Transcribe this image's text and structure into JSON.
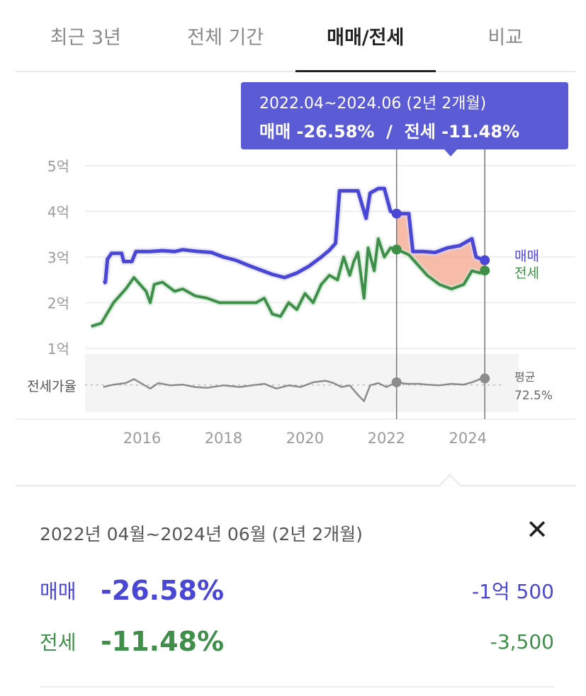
{
  "tabs": [
    {
      "label": "최근 3년",
      "active": false
    },
    {
      "label": "전체 기간",
      "active": false
    },
    {
      "label": "매매/전세",
      "active": true
    },
    {
      "label": "비교",
      "active": false
    }
  ],
  "tooltip": {
    "line1": "2022.04~2024.06 (2년 2개월)",
    "line2": "매매 -26.58%  /  전세 -11.48%"
  },
  "colors": {
    "sale": "#4a46d6",
    "jeonse": "#3f8f4a",
    "highlight": "#f4a58a",
    "tooltip_bg": "#5b5bd6",
    "ratio": "#8c8c8c"
  },
  "chart_data": {
    "type": "line",
    "x_unit": "year",
    "xlim": [
      2014.6,
      2024.9
    ],
    "x_ticks": [
      2016,
      2018,
      2020,
      2022,
      2024
    ],
    "x_tick_labels": [
      "2016",
      "2018",
      "2020",
      "2022",
      "2024"
    ],
    "ylim": [
      1,
      5
    ],
    "y_ticks": [
      1,
      2,
      3,
      4,
      5
    ],
    "y_tick_labels": [
      "1억",
      "2억",
      "3억",
      "4억",
      "5억"
    ],
    "grid": true,
    "highlight_range": [
      "2022.04",
      "2024.06"
    ],
    "series": [
      {
        "name": "매매",
        "label": "매매",
        "unit": "억",
        "points": [
          [
            2015.05,
            2.43
          ],
          [
            2015.1,
            2.45
          ],
          [
            2015.15,
            2.95
          ],
          [
            2015.25,
            3.08
          ],
          [
            2015.5,
            3.08
          ],
          [
            2015.55,
            2.9
          ],
          [
            2015.75,
            2.9
          ],
          [
            2015.85,
            3.12
          ],
          [
            2016.2,
            3.12
          ],
          [
            2016.5,
            3.14
          ],
          [
            2016.8,
            3.12
          ],
          [
            2017.0,
            3.16
          ],
          [
            2017.4,
            3.12
          ],
          [
            2017.7,
            3.1
          ],
          [
            2018.0,
            3.0
          ],
          [
            2018.3,
            2.93
          ],
          [
            2018.6,
            2.82
          ],
          [
            2018.9,
            2.72
          ],
          [
            2019.2,
            2.62
          ],
          [
            2019.5,
            2.55
          ],
          [
            2019.8,
            2.65
          ],
          [
            2020.1,
            2.8
          ],
          [
            2020.4,
            3.0
          ],
          [
            2020.6,
            3.15
          ],
          [
            2020.75,
            3.3
          ],
          [
            2020.85,
            4.45
          ],
          [
            2021.3,
            4.45
          ],
          [
            2021.5,
            3.85
          ],
          [
            2021.6,
            4.4
          ],
          [
            2021.8,
            4.5
          ],
          [
            2021.95,
            4.5
          ],
          [
            2022.1,
            4.0
          ],
          [
            2022.25,
            3.95
          ],
          [
            2022.55,
            3.95
          ],
          [
            2022.65,
            3.12
          ],
          [
            2022.9,
            3.12
          ],
          [
            2023.2,
            3.1
          ],
          [
            2023.5,
            3.2
          ],
          [
            2023.8,
            3.25
          ],
          [
            2024.1,
            3.4
          ],
          [
            2024.2,
            3.0
          ],
          [
            2024.35,
            2.95
          ],
          [
            2024.45,
            2.92
          ]
        ],
        "end_label": "매매"
      },
      {
        "name": "전세",
        "label": "전세",
        "unit": "억",
        "points": [
          [
            2014.75,
            1.48
          ],
          [
            2015.0,
            1.55
          ],
          [
            2015.3,
            2.0
          ],
          [
            2015.6,
            2.3
          ],
          [
            2015.8,
            2.55
          ],
          [
            2016.1,
            2.25
          ],
          [
            2016.2,
            2.0
          ],
          [
            2016.3,
            2.4
          ],
          [
            2016.5,
            2.45
          ],
          [
            2016.8,
            2.25
          ],
          [
            2017.0,
            2.3
          ],
          [
            2017.3,
            2.15
          ],
          [
            2017.6,
            2.1
          ],
          [
            2017.9,
            2.0
          ],
          [
            2018.3,
            2.0
          ],
          [
            2018.8,
            2.0
          ],
          [
            2019.0,
            2.1
          ],
          [
            2019.2,
            1.75
          ],
          [
            2019.4,
            1.7
          ],
          [
            2019.6,
            2.0
          ],
          [
            2019.8,
            1.85
          ],
          [
            2020.0,
            2.2
          ],
          [
            2020.2,
            2.0
          ],
          [
            2020.4,
            2.4
          ],
          [
            2020.6,
            2.6
          ],
          [
            2020.8,
            2.5
          ],
          [
            2020.95,
            3.0
          ],
          [
            2021.1,
            2.6
          ],
          [
            2021.2,
            2.9
          ],
          [
            2021.3,
            3.1
          ],
          [
            2021.45,
            2.1
          ],
          [
            2021.55,
            3.2
          ],
          [
            2021.7,
            2.7
          ],
          [
            2021.8,
            3.4
          ],
          [
            2021.95,
            3.0
          ],
          [
            2022.1,
            3.2
          ],
          [
            2022.3,
            3.15
          ],
          [
            2022.55,
            3.05
          ],
          [
            2022.8,
            2.8
          ],
          [
            2023.0,
            2.6
          ],
          [
            2023.3,
            2.4
          ],
          [
            2023.6,
            2.3
          ],
          [
            2023.9,
            2.4
          ],
          [
            2024.1,
            2.7
          ],
          [
            2024.3,
            2.65
          ],
          [
            2024.45,
            2.72
          ]
        ],
        "end_label": "전세"
      },
      {
        "name": "전세가율",
        "label": "전세가율",
        "unit": "%",
        "ylim": [
          40,
          110
        ],
        "average": 72.5,
        "average_label": "평균",
        "average_value_label": "72.5%",
        "points": [
          [
            2015.05,
            70
          ],
          [
            2015.3,
            73
          ],
          [
            2015.6,
            75
          ],
          [
            2015.8,
            80
          ],
          [
            2016.0,
            74
          ],
          [
            2016.2,
            68
          ],
          [
            2016.4,
            75
          ],
          [
            2016.7,
            72
          ],
          [
            2017.0,
            73
          ],
          [
            2017.3,
            70
          ],
          [
            2017.6,
            69
          ],
          [
            2018.0,
            72
          ],
          [
            2018.4,
            70
          ],
          [
            2018.7,
            72
          ],
          [
            2019.0,
            74
          ],
          [
            2019.3,
            68
          ],
          [
            2019.6,
            72
          ],
          [
            2019.9,
            70
          ],
          [
            2020.2,
            76
          ],
          [
            2020.5,
            78
          ],
          [
            2020.7,
            75
          ],
          [
            2020.9,
            70
          ],
          [
            2021.1,
            72
          ],
          [
            2021.3,
            60
          ],
          [
            2021.45,
            52
          ],
          [
            2021.6,
            72
          ],
          [
            2021.8,
            75
          ],
          [
            2022.0,
            70
          ],
          [
            2022.25,
            76
          ],
          [
            2022.5,
            74
          ],
          [
            2022.8,
            74
          ],
          [
            2023.0,
            73
          ],
          [
            2023.3,
            72
          ],
          [
            2023.6,
            74
          ],
          [
            2023.9,
            73
          ],
          [
            2024.1,
            76
          ],
          [
            2024.3,
            80
          ],
          [
            2024.45,
            81
          ]
        ]
      }
    ]
  },
  "detail": {
    "period": "2022년 04월~2024년 06월 (2년 2개월)",
    "rows": [
      {
        "label": "매매",
        "percent": "-26.58%",
        "amount": "-1억 500"
      },
      {
        "label": "전세",
        "percent": "-11.48%",
        "amount": "-3,500"
      }
    ]
  }
}
